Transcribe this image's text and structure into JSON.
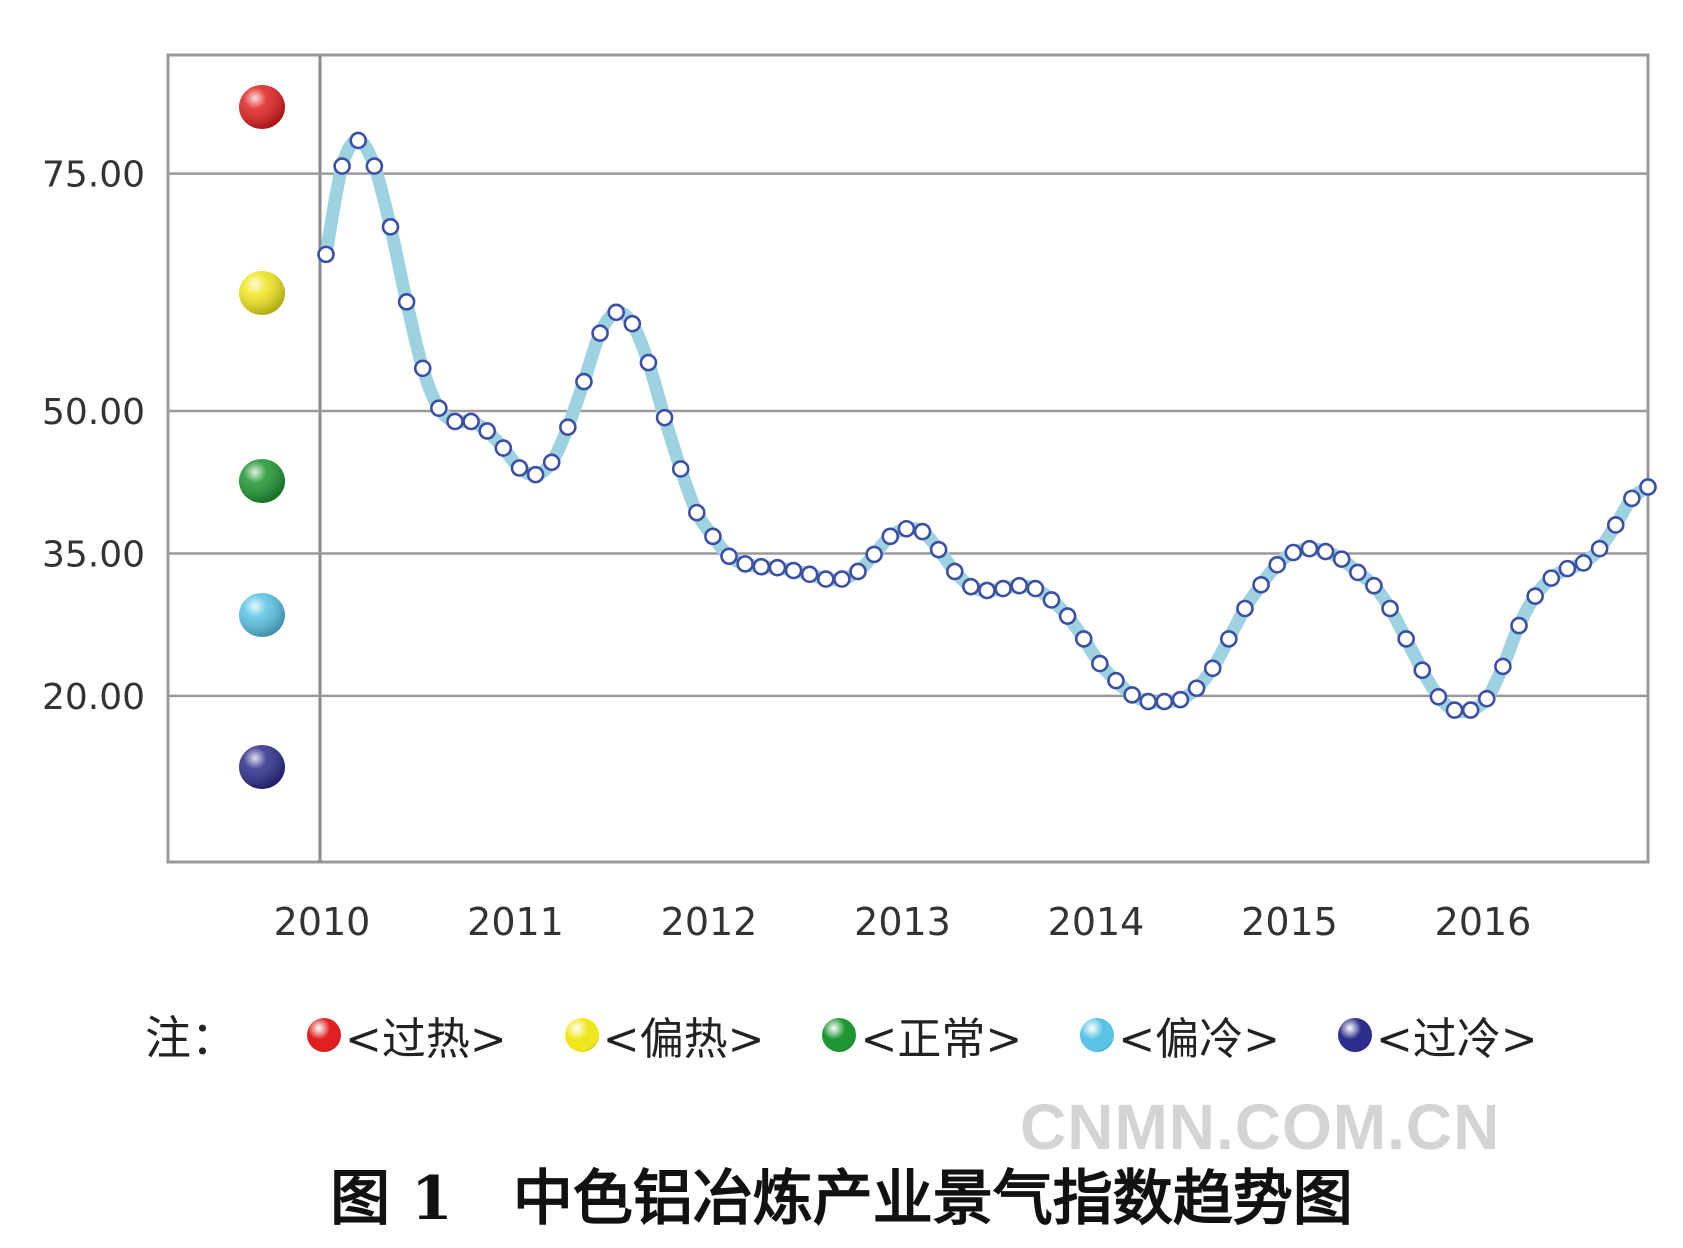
{
  "chart_data": {
    "type": "line",
    "title": "",
    "xlabel": "",
    "ylabel": "",
    "x_tick_labels": [
      "2010",
      "2011",
      "2012",
      "2013",
      "2014",
      "2015",
      "2016"
    ],
    "y_tick_labels": [
      "75.00",
      "50.00",
      "35.00",
      "20.00"
    ],
    "y_ticks": [
      75,
      50,
      35,
      20
    ],
    "ylim": [
      2.5,
      87.5
    ],
    "grid": true,
    "series": [
      {
        "values": [
          66.5,
          75.8,
          78.5,
          75.8,
          69.4,
          61.5,
          54.5,
          50.3,
          48.9,
          48.9,
          47.9,
          46.1,
          44.0,
          43.3,
          44.6,
          48.3,
          53.1,
          58.2,
          60.4,
          59.2,
          55.1,
          49.3,
          43.9,
          39.3,
          36.8,
          34.7,
          33.9,
          33.6,
          33.5,
          33.2,
          32.8,
          32.3,
          32.3,
          33.1,
          34.9,
          36.8,
          37.6,
          37.3,
          35.4,
          33.1,
          31.5,
          31.1,
          31.3,
          31.6,
          31.3,
          30.1,
          28.4,
          26.0,
          23.4,
          21.6,
          20.1,
          19.4,
          19.4,
          19.6,
          20.8,
          22.9,
          26.0,
          29.2,
          31.7,
          33.8,
          35.1,
          35.5,
          35.2,
          34.4,
          33.0,
          31.6,
          29.2,
          26.0,
          22.7,
          19.9,
          18.5,
          18.5,
          19.7,
          23.1,
          27.4,
          30.5,
          32.4,
          33.4,
          34.0,
          35.5,
          38.0,
          40.8,
          42.0
        ]
      }
    ],
    "indicators": [
      {
        "label": "过热",
        "color": "#e02020"
      },
      {
        "label": "偏热",
        "color": "#f0e61e"
      },
      {
        "label": "正常",
        "color": "#1e9632"
      },
      {
        "label": "偏冷",
        "color": "#5ac3e6"
      },
      {
        "label": "过冷",
        "color": "#2d2d8c"
      }
    ]
  },
  "colors": {
    "line_band": "#9dd3e0",
    "marker_edge": "#3b4fa3",
    "grid": "#9a9a9a"
  },
  "legend": {
    "prefix": "注：",
    "items": [
      {
        "text": "<过热>",
        "color": "#e02020"
      },
      {
        "text": "<偏热>",
        "color": "#f0e61e"
      },
      {
        "text": "<正常>",
        "color": "#1e9632"
      },
      {
        "text": "<偏冷>",
        "color": "#5ac3e6"
      },
      {
        "text": "<过冷>",
        "color": "#2d2d8c"
      }
    ]
  },
  "watermark": "CNMN.COM.CN",
  "caption": {
    "number": "图 1",
    "title": "中色铝冶炼产业景气指数趋势图"
  }
}
